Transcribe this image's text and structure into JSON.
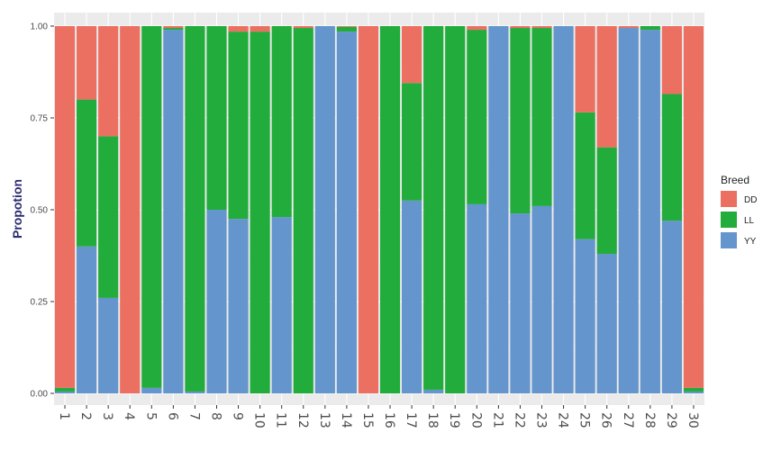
{
  "chart_data": {
    "type": "bar",
    "stacked": true,
    "title": "",
    "xlabel": "",
    "ylabel": "Propotion",
    "ylim": [
      0,
      1
    ],
    "yticks": [
      "0.00",
      "0.25",
      "0.50",
      "0.75",
      "1.00"
    ],
    "grid": true,
    "legend": {
      "title": "Breed",
      "position": "right"
    },
    "categories": [
      "1",
      "2",
      "3",
      "4",
      "5",
      "6",
      "7",
      "8",
      "9",
      "10",
      "11",
      "12",
      "13",
      "14",
      "15",
      "16",
      "17",
      "18",
      "19",
      "20",
      "21",
      "22",
      "23",
      "24",
      "25",
      "26",
      "27",
      "28",
      "29",
      "30"
    ],
    "series": [
      {
        "name": "YY",
        "color": "#6495cd",
        "values": [
          0.005,
          0.4,
          0.26,
          0.0,
          0.015,
          0.99,
          0.005,
          0.5,
          0.475,
          0.0,
          0.48,
          0.0,
          1.0,
          0.985,
          0.0,
          0.0,
          0.525,
          0.01,
          0.0,
          0.515,
          1.0,
          0.49,
          0.51,
          1.0,
          0.42,
          0.38,
          0.995,
          0.99,
          0.47,
          0.005
        ]
      },
      {
        "name": "LL",
        "color": "#22ac3c",
        "values": [
          0.01,
          0.4,
          0.44,
          0.0,
          0.985,
          0.005,
          0.995,
          0.5,
          0.51,
          0.985,
          0.52,
          0.995,
          0.0,
          0.013,
          0.0,
          1.0,
          0.32,
          0.99,
          1.0,
          0.475,
          0.0,
          0.505,
          0.485,
          0.0,
          0.345,
          0.29,
          0.0,
          0.01,
          0.345,
          0.01
        ]
      },
      {
        "name": "DD",
        "color": "#ec7062",
        "values": [
          0.985,
          0.2,
          0.3,
          1.0,
          0.0,
          0.005,
          0.0,
          0.0,
          0.015,
          0.015,
          0.0,
          0.005,
          0.0,
          0.002,
          1.0,
          0.0,
          0.155,
          0.0,
          0.0,
          0.01,
          0.0,
          0.005,
          0.005,
          0.0,
          0.235,
          0.33,
          0.005,
          0.0,
          0.185,
          0.985
        ]
      }
    ]
  }
}
